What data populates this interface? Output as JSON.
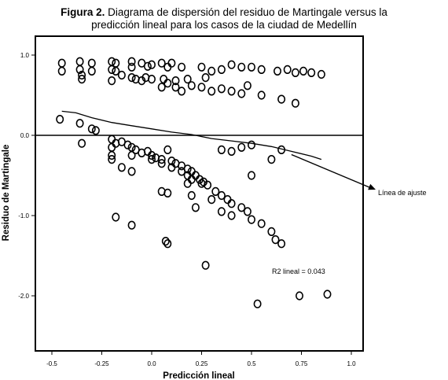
{
  "figure": {
    "label": "Figura 2.",
    "title_line1": "Diagrama de dispersión del residuo de Martingale versus la",
    "title_line2": "predicción lineal para los casos de la ciudad de Medellín"
  },
  "chart_data": {
    "type": "scatter",
    "xlabel": "Predicción lineal",
    "ylabel": "Residuo de Martingale",
    "xlim": [
      -0.55,
      1.0
    ],
    "ylim": [
      -2.7,
      1.05
    ],
    "x_ticks": [
      -0.5,
      -0.25,
      0.0,
      0.25,
      0.5,
      0.75,
      1.0
    ],
    "x_tick_labels": [
      "-0.5",
      "-0.25",
      "0.0",
      "0.25",
      "0.5",
      "0.75",
      "1.0"
    ],
    "y_ticks": [
      1.0,
      0.0,
      -1.0,
      -2.0
    ],
    "y_tick_labels": [
      "1.0",
      "0.0",
      "-1.0",
      "-2.0"
    ],
    "reference_line_y": 0.0,
    "grid": false,
    "r2_text": "R2 lineal = 0.043",
    "fit_annotation": "Línea de ajuste",
    "fit_line": {
      "x": [
        -0.45,
        -0.38,
        -0.3,
        -0.2,
        -0.1,
        0.0,
        0.1,
        0.2,
        0.3,
        0.4,
        0.5,
        0.6,
        0.7,
        0.8,
        0.85
      ],
      "y": [
        0.3,
        0.28,
        0.22,
        0.16,
        0.12,
        0.08,
        0.04,
        0.01,
        -0.04,
        -0.07,
        -0.1,
        -0.14,
        -0.2,
        -0.26,
        -0.3
      ]
    },
    "points": {
      "x": [
        -0.45,
        -0.45,
        -0.36,
        -0.36,
        -0.35,
        -0.35,
        -0.3,
        -0.3,
        -0.2,
        -0.2,
        -0.18,
        -0.18,
        -0.1,
        -0.1,
        -0.08,
        -0.05,
        -0.03,
        -0.02,
        0.0,
        0.05,
        0.06,
        0.08,
        0.1,
        0.12,
        0.15,
        0.18,
        0.25,
        0.27,
        0.3,
        0.35,
        0.4,
        0.45,
        0.48,
        0.5,
        0.55,
        0.63,
        0.68,
        0.72,
        0.76,
        0.8,
        0.85,
        -0.2,
        -0.15,
        -0.1,
        -0.05,
        0.0,
        0.05,
        0.08,
        0.12,
        0.15,
        0.2,
        0.25,
        0.3,
        0.35,
        0.4,
        0.45,
        0.55,
        0.65,
        0.72,
        -0.46,
        -0.36,
        -0.35,
        -0.3,
        -0.28,
        -0.2,
        -0.18,
        -0.15,
        -0.12,
        -0.1,
        -0.08,
        -0.05,
        -0.02,
        0.0,
        0.02,
        0.05,
        0.08,
        0.1,
        0.12,
        0.15,
        0.18,
        0.2,
        0.22,
        0.24,
        0.26,
        0.28,
        0.35,
        0.4,
        0.45,
        0.5,
        0.65,
        -0.2,
        -0.1,
        0.0,
        0.05,
        0.1,
        0.15,
        0.18,
        0.2,
        0.25,
        0.32,
        0.35,
        0.38,
        0.4,
        0.45,
        0.48,
        0.5,
        -0.2,
        -0.15,
        -0.1,
        0.05,
        0.08,
        0.18,
        0.22,
        0.3,
        0.4,
        0.5,
        0.55,
        0.6,
        0.62,
        0.65,
        -0.18,
        -0.1,
        0.07,
        0.08,
        0.27,
        0.53,
        0.74,
        0.88,
        -0.2,
        0.2,
        0.35,
        0.6
      ],
      "y": [
        0.9,
        0.8,
        0.92,
        0.82,
        0.75,
        0.7,
        0.9,
        0.8,
        0.92,
        0.82,
        0.9,
        0.8,
        0.92,
        0.85,
        0.7,
        0.9,
        0.72,
        0.86,
        0.88,
        0.9,
        0.7,
        0.85,
        0.9,
        0.68,
        0.85,
        0.7,
        0.85,
        0.72,
        0.8,
        0.82,
        0.88,
        0.85,
        0.62,
        0.85,
        0.82,
        0.8,
        0.82,
        0.78,
        0.8,
        0.78,
        0.76,
        0.68,
        0.75,
        0.72,
        0.68,
        0.7,
        0.6,
        0.65,
        0.6,
        0.55,
        0.62,
        0.6,
        0.55,
        0.58,
        0.55,
        0.52,
        0.5,
        0.45,
        0.4,
        0.2,
        0.15,
        -0.1,
        0.08,
        0.06,
        -0.05,
        -0.1,
        -0.08,
        -0.12,
        -0.15,
        -0.18,
        -0.22,
        -0.2,
        -0.25,
        -0.28,
        -0.3,
        -0.18,
        -0.32,
        -0.35,
        -0.38,
        -0.42,
        -0.45,
        -0.5,
        -0.55,
        -0.58,
        -0.62,
        -0.18,
        -0.2,
        -0.15,
        -0.12,
        -0.18,
        -0.3,
        -0.25,
        -0.3,
        -0.35,
        -0.4,
        -0.45,
        -0.5,
        -0.55,
        -0.6,
        -0.7,
        -0.75,
        -0.8,
        -0.85,
        -0.9,
        -0.95,
        -0.5,
        -0.15,
        -0.4,
        -0.45,
        -0.7,
        -0.72,
        -0.6,
        -0.9,
        -0.8,
        -1.0,
        -1.05,
        -1.1,
        -1.2,
        -1.3,
        -1.35,
        -1.02,
        -1.12,
        -1.32,
        -1.35,
        -1.62,
        -2.1,
        -2.0,
        -1.98,
        -0.25,
        -0.75,
        -0.95,
        -0.3
      ]
    }
  }
}
